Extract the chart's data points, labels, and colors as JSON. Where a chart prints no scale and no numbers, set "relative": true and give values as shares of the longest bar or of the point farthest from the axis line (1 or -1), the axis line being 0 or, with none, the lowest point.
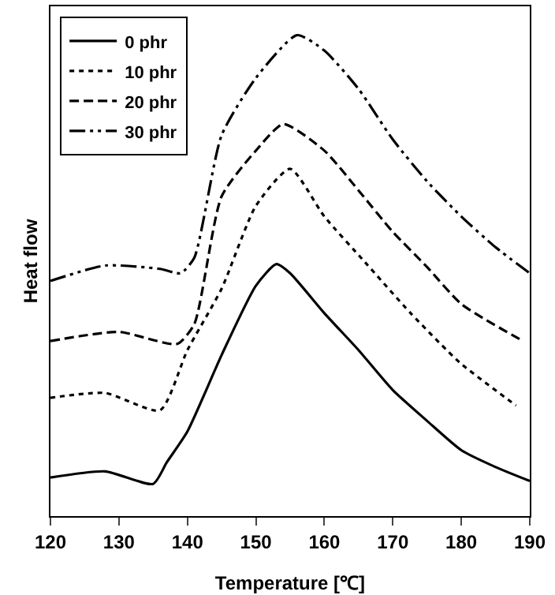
{
  "chart_data": {
    "type": "line",
    "relative": true,
    "xlabel": "Temperature [℃]",
    "ylabel": "Heat flow",
    "xlim": [
      120,
      190
    ],
    "xticks": [
      120,
      130,
      140,
      150,
      160,
      170,
      180,
      190
    ],
    "tick_labels": "x",
    "legend": "top left",
    "marker": "none",
    "series": [
      {
        "name": "0 phr",
        "color": "#000000",
        "line_style": "solid",
        "x": [
          120,
          128,
          135,
          137,
          140,
          145,
          150,
          153,
          155,
          160,
          165,
          170,
          175,
          180,
          185,
          190
        ],
        "values": [
          0.08,
          0.093,
          0.067,
          0.112,
          0.176,
          0.335,
          0.479,
          0.524,
          0.505,
          0.422,
          0.345,
          0.262,
          0.198,
          0.137,
          0.102,
          0.073
        ]
      },
      {
        "name": "10 phr",
        "color": "#000000",
        "line_style": "dotted",
        "x": [
          120,
          128,
          136,
          140,
          145,
          150,
          155,
          160,
          166,
          172.6,
          179.8,
          188
        ],
        "values": [
          0.246,
          0.256,
          0.22,
          0.345,
          0.473,
          0.645,
          0.722,
          0.623,
          0.527,
          0.422,
          0.319,
          0.23
        ]
      },
      {
        "name": "20 phr",
        "color": "#000000",
        "line_style": "dashed",
        "x": [
          120,
          130,
          138.5,
          141,
          145,
          150,
          154,
          160,
          165,
          170,
          175,
          180,
          189
        ],
        "values": [
          0.364,
          0.383,
          0.358,
          0.399,
          0.665,
          0.76,
          0.815,
          0.76,
          0.677,
          0.591,
          0.518,
          0.441,
          0.364
        ]
      },
      {
        "name": "30 phr",
        "color": "#000000",
        "line_style": "dashdotdot",
        "x": [
          120,
          128,
          136,
          139,
          141,
          145,
          150,
          156,
          160,
          165,
          170,
          175,
          180,
          185,
          190
        ],
        "values": [
          0.489,
          0.521,
          0.514,
          0.505,
          0.537,
          0.792,
          0.911,
          1.0,
          0.968,
          0.888,
          0.783,
          0.696,
          0.623,
          0.559,
          0.505
        ]
      }
    ]
  }
}
